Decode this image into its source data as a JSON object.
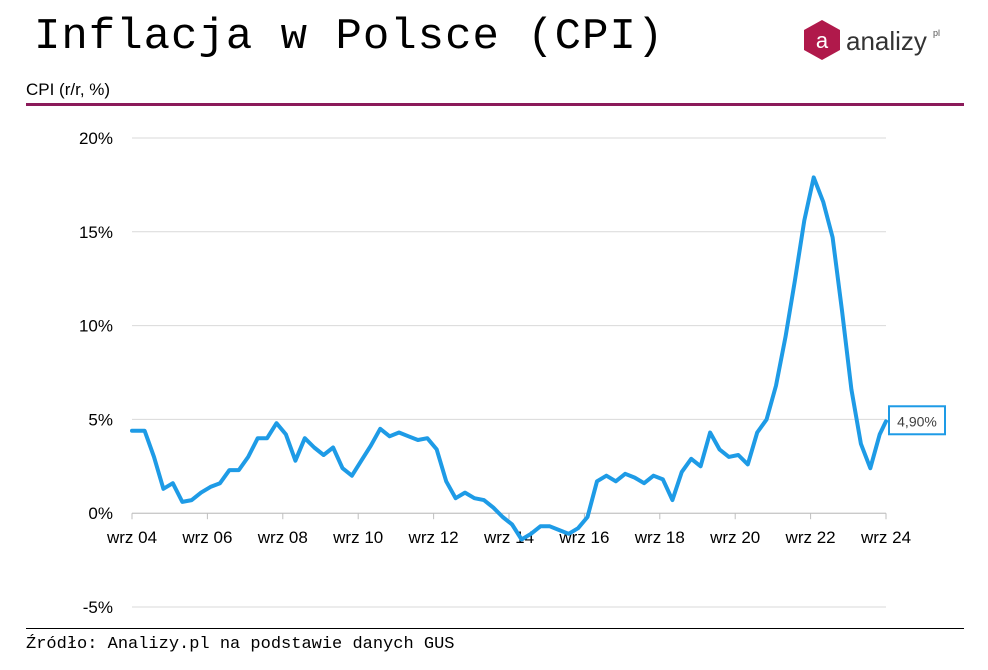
{
  "header": {
    "title": "Inflacja w Polsce (CPI)",
    "logo_text": "analizy",
    "logo_sup": "pl",
    "logo_glyph": "a",
    "subtitle": "CPI (r/r, %)"
  },
  "footer": {
    "source": "Źródło: Analizy.pl na podstawie danych GUS"
  },
  "colors": {
    "line": "#1e9be6",
    "accent": "#8b1a5a",
    "grid": "#d9d9d9",
    "logo": "#b0194b"
  },
  "chart_data": {
    "type": "line",
    "title": "Inflacja w Polsce (CPI)",
    "ylabel": "CPI (r/r, %)",
    "xlabel": "",
    "x_start": "2004-09",
    "x_end": "2024-09",
    "ylim": [
      -5,
      20
    ],
    "yticks": [
      -5,
      0,
      5,
      10,
      15,
      20
    ],
    "ytick_labels": [
      "-5%",
      "0%",
      "5%",
      "10%",
      "15%",
      "20%"
    ],
    "xtick_labels": [
      "wrz 04",
      "wrz 06",
      "wrz 08",
      "wrz 10",
      "wrz 12",
      "wrz 14",
      "wrz 16",
      "wrz 18",
      "wrz 20",
      "wrz 22",
      "wrz 24"
    ],
    "grid": true,
    "last_value_label": "4,90%",
    "series": [
      {
        "x": [
          "2004-09",
          "2005-01",
          "2005-04",
          "2005-07",
          "2005-10",
          "2006-01",
          "2006-04",
          "2006-07",
          "2006-10",
          "2007-01",
          "2007-04",
          "2007-07",
          "2007-10",
          "2008-01",
          "2008-04",
          "2008-07",
          "2008-10",
          "2009-01",
          "2009-04",
          "2009-07",
          "2009-10",
          "2010-01",
          "2010-04",
          "2010-07",
          "2010-10",
          "2011-01",
          "2011-04",
          "2011-07",
          "2011-10",
          "2012-01",
          "2012-04",
          "2012-07",
          "2012-10",
          "2013-01",
          "2013-04",
          "2013-07",
          "2013-10",
          "2014-01",
          "2014-04",
          "2014-07",
          "2014-10",
          "2015-01",
          "2015-04",
          "2015-07",
          "2015-10",
          "2016-01",
          "2016-04",
          "2016-07",
          "2016-10",
          "2017-01",
          "2017-04",
          "2017-07",
          "2017-10",
          "2018-01",
          "2018-04",
          "2018-07",
          "2018-10",
          "2019-01",
          "2019-04",
          "2019-07",
          "2019-10",
          "2020-01",
          "2020-04",
          "2020-07",
          "2020-10",
          "2021-01",
          "2021-04",
          "2021-07",
          "2021-10",
          "2022-01",
          "2022-04",
          "2022-07",
          "2022-10",
          "2023-01",
          "2023-04",
          "2023-07",
          "2023-10",
          "2024-01",
          "2024-04",
          "2024-07",
          "2024-09"
        ],
        "values": [
          4.4,
          4.4,
          3.0,
          1.3,
          1.6,
          0.6,
          0.7,
          1.1,
          1.4,
          1.6,
          2.3,
          2.3,
          3.0,
          4.0,
          4.0,
          4.8,
          4.2,
          2.8,
          4.0,
          3.5,
          3.1,
          3.5,
          2.4,
          2.0,
          2.8,
          3.6,
          4.5,
          4.1,
          4.3,
          4.1,
          3.9,
          4.0,
          3.4,
          1.7,
          0.8,
          1.1,
          0.8,
          0.7,
          0.3,
          -0.2,
          -0.6,
          -1.4,
          -1.1,
          -0.7,
          -0.7,
          -0.9,
          -1.1,
          -0.8,
          -0.2,
          1.7,
          2.0,
          1.7,
          2.1,
          1.9,
          1.6,
          2.0,
          1.8,
          0.7,
          2.2,
          2.9,
          2.5,
          4.3,
          3.4,
          3.0,
          3.1,
          2.6,
          4.3,
          5.0,
          6.8,
          9.4,
          12.4,
          15.6,
          17.9,
          16.6,
          14.7,
          10.8,
          6.6,
          3.7,
          2.4,
          4.2,
          4.9
        ]
      }
    ]
  }
}
